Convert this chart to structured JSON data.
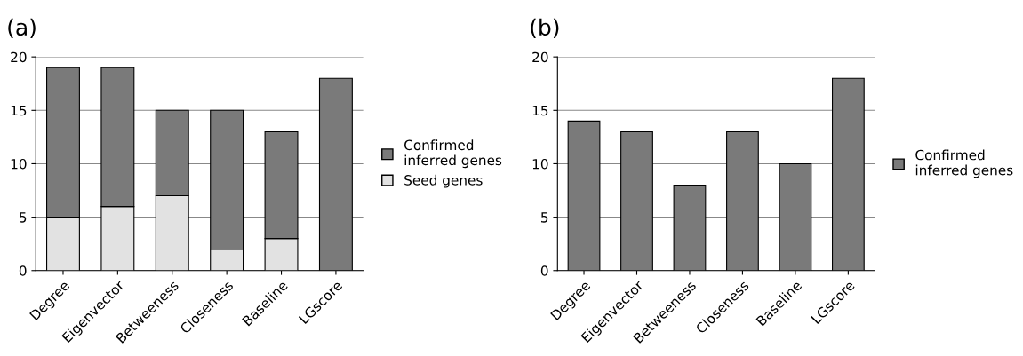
{
  "chart_data": [
    {
      "type": "bar",
      "title": "(a)",
      "stacked": true,
      "categories": [
        "Degree",
        "Eigenvector",
        "Betweeness",
        "Closeness",
        "Baseline",
        "LGscore"
      ],
      "series": [
        {
          "name": "Seed genes",
          "color": "#e2e2e2",
          "values": [
            5,
            6,
            7,
            2,
            3,
            0
          ]
        },
        {
          "name": "Confirmed\ninferred genes",
          "color": "#7a7a7a",
          "values": [
            14,
            13,
            8,
            13,
            10,
            18
          ]
        }
      ],
      "ylim": [
        0,
        20
      ],
      "yticks": [
        0,
        5,
        10,
        15,
        20
      ],
      "grid": "y",
      "legend": "right"
    },
    {
      "type": "bar",
      "title": "(b)",
      "categories": [
        "Degree",
        "Eigenvector",
        "Betweeness",
        "Closeness",
        "Baseline",
        "LGscore"
      ],
      "series": [
        {
          "name": "Confirmed\ninferred genes",
          "color": "#7a7a7a",
          "values": [
            14,
            13,
            8,
            13,
            10,
            18
          ]
        }
      ],
      "ylim": [
        0,
        20
      ],
      "yticks": [
        0,
        5,
        10,
        15,
        20
      ],
      "grid": "y",
      "legend": "right"
    }
  ]
}
